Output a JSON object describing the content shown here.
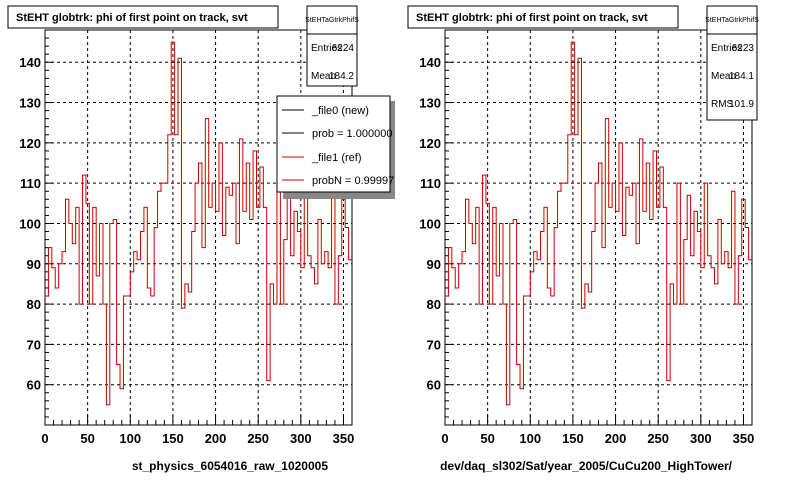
{
  "chart_data": [
    {
      "type": "line",
      "title": "StEHT globtrk: phi of first point on track, svt",
      "xlabel": "st_physics_6054016_raw_1020005",
      "xlim": [
        0,
        360
      ],
      "ylim": [
        50,
        148
      ],
      "x_ticks": [
        "0",
        "50",
        "100",
        "150",
        "200",
        "250",
        "300",
        "350"
      ],
      "y_ticks": [
        "60",
        "70",
        "80",
        "90",
        "100",
        "110",
        "120",
        "130",
        "140"
      ],
      "grid": true,
      "stats": {
        "title": "StEHTaGtrkPhifS",
        "rows": [
          {
            "label": "Entries",
            "value": "6224"
          },
          {
            "label": "Mean",
            "value": "184.2"
          }
        ]
      },
      "legend": {
        "placement": "top-right",
        "entries": [
          {
            "label": "_file0 (new)",
            "color": "#000000"
          },
          {
            "label": "prob = 1.000000",
            "color": "#000000"
          },
          {
            "label": "_file1 (ref)",
            "color": "#cc0000"
          },
          {
            "label": "probN = 0.99997",
            "color": "#cc0000"
          }
        ]
      },
      "bin_width": 4,
      "series": [
        {
          "color": "#cc0000",
          "values": [
            82,
            94,
            89,
            84,
            90,
            93,
            106,
            100,
            95,
            104,
            80,
            112,
            105,
            80,
            104,
            87,
            100,
            80,
            55,
            100,
            101,
            65,
            59,
            82,
            82,
            88,
            93,
            91,
            98,
            104,
            84,
            82,
            99,
            108,
            110,
            110,
            122,
            145,
            122,
            141,
            79,
            85,
            83,
            98,
            110,
            115,
            94,
            126,
            104,
            110,
            103,
            120,
            97,
            109,
            107,
            110,
            95,
            121,
            103,
            115,
            101,
            118,
            104,
            114,
            104,
            61,
            85,
            80,
            110,
            80,
            96,
            107,
            92,
            103,
            98,
            89,
            110,
            92,
            89,
            85,
            101,
            90,
            93,
            89,
            108,
            80,
            92,
            106,
            99,
            91
          ]
        }
      ]
    },
    {
      "type": "line",
      "title": "StEHT globtrk: phi of first point on track, svt",
      "xlabel": "dev/daq_sl302/Sat/year_2005/CuCu200_HighTower/",
      "xlim": [
        0,
        360
      ],
      "ylim": [
        50,
        148
      ],
      "x_ticks": [
        "0",
        "50",
        "100",
        "150",
        "200",
        "250",
        "300",
        "350"
      ],
      "y_ticks": [
        "60",
        "70",
        "80",
        "90",
        "100",
        "110",
        "120",
        "130",
        "140"
      ],
      "grid": true,
      "stats": {
        "title": "StEHTaGtrkPhifS",
        "rows": [
          {
            "label": "Entries",
            "value": "6223"
          },
          {
            "label": "Mean",
            "value": "184.1"
          },
          {
            "label": "RMS",
            "value": "101.9"
          }
        ]
      },
      "bin_width": 4,
      "series": [
        {
          "color": "#cc0000",
          "values": [
            82,
            94,
            89,
            84,
            90,
            93,
            106,
            100,
            95,
            104,
            80,
            112,
            105,
            80,
            104,
            87,
            100,
            80,
            55,
            100,
            101,
            65,
            59,
            82,
            82,
            88,
            93,
            91,
            98,
            104,
            84,
            82,
            99,
            108,
            110,
            110,
            122,
            145,
            122,
            141,
            79,
            85,
            83,
            98,
            110,
            115,
            94,
            126,
            104,
            110,
            103,
            120,
            97,
            109,
            107,
            110,
            95,
            121,
            103,
            115,
            101,
            118,
            104,
            114,
            104,
            61,
            85,
            80,
            110,
            80,
            96,
            107,
            92,
            103,
            98,
            89,
            110,
            92,
            89,
            85,
            101,
            90,
            93,
            89,
            108,
            80,
            92,
            106,
            99,
            91
          ]
        }
      ]
    }
  ]
}
